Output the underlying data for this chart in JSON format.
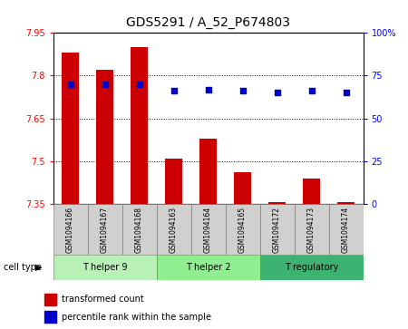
{
  "title": "GDS5291 / A_52_P674803",
  "samples": [
    "GSM1094166",
    "GSM1094167",
    "GSM1094168",
    "GSM1094163",
    "GSM1094164",
    "GSM1094165",
    "GSM1094172",
    "GSM1094173",
    "GSM1094174"
  ],
  "transformed_count": [
    7.88,
    7.82,
    7.9,
    7.51,
    7.58,
    7.46,
    7.355,
    7.44,
    7.355
  ],
  "percentile_rank": [
    70,
    70,
    70,
    66,
    67,
    66,
    65,
    66,
    65
  ],
  "ylim_left": [
    7.35,
    7.95
  ],
  "ylim_right": [
    0,
    100
  ],
  "yticks_left": [
    7.35,
    7.5,
    7.65,
    7.8,
    7.95
  ],
  "yticks_right": [
    0,
    25,
    50,
    75,
    100
  ],
  "ytick_labels_left": [
    "7.35",
    "7.5",
    "7.65",
    "7.8",
    "7.95"
  ],
  "ytick_labels_right": [
    "0",
    "25",
    "50",
    "75",
    "100%"
  ],
  "groups": [
    {
      "label": "T helper 9",
      "indices": [
        0,
        1,
        2
      ],
      "color": "#b8f0b8"
    },
    {
      "label": "T helper 2",
      "indices": [
        3,
        4,
        5
      ],
      "color": "#90ee90"
    },
    {
      "label": "T regulatory",
      "indices": [
        6,
        7,
        8
      ],
      "color": "#3cb371"
    }
  ],
  "bar_color": "#cc0000",
  "dot_color": "#0000cc",
  "bar_width": 0.5,
  "grid_color": "black",
  "plot_bg": "#ffffff",
  "legend_items": [
    {
      "label": "transformed count",
      "color": "#cc0000"
    },
    {
      "label": "percentile rank within the sample",
      "color": "#0000cc"
    }
  ],
  "cell_type_label": "cell type",
  "group_box_color": "#d0d0d0"
}
